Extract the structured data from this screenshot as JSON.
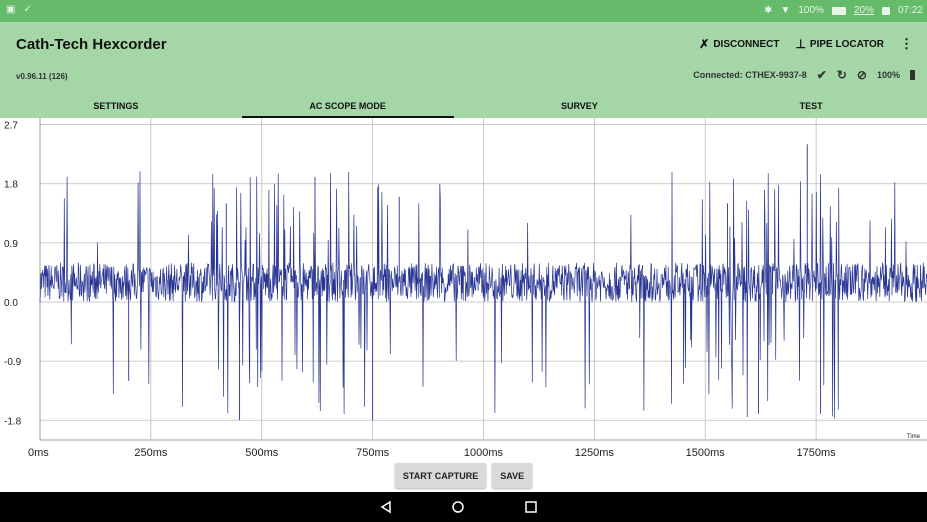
{
  "status_bar": {
    "battery_text": "100%",
    "battery_text2": "20%",
    "time": "07:22"
  },
  "app": {
    "title": "Cath-Tech Hexcorder",
    "version": "v0.96.11 (126)",
    "actions": {
      "disconnect": "DISCONNECT",
      "pipe_locator": "PIPE LOCATOR"
    },
    "connection": {
      "text": "Connected: CTHEX-9937-8",
      "battery": "100%"
    },
    "tabs": [
      {
        "label": "SETTINGS"
      },
      {
        "label": "AC SCOPE MODE"
      },
      {
        "label": "SURVEY"
      },
      {
        "label": "TEST"
      }
    ],
    "active_tab": 1
  },
  "chart_data": {
    "type": "line",
    "xlabel": "Time",
    "ylabel": "",
    "xlim": [
      0,
      2000
    ],
    "ylim": [
      -2.1,
      2.8
    ],
    "y_ticks": [
      "2.7",
      "1.8",
      "0.9",
      "0.0",
      "-0.9",
      "-1.8"
    ],
    "x_ticks": [
      "0ms",
      "250ms",
      "500ms",
      "750ms",
      "1000ms",
      "1250ms",
      "1500ms",
      "1750ms"
    ],
    "grid": true,
    "series": [
      {
        "color": "#283593",
        "baseline_range": [
          0.0,
          0.6
        ],
        "note_values": [
          {
            "x": 200,
            "y": -1.2
          },
          {
            "x": 420,
            "y": 1.5
          },
          {
            "x": 450,
            "y": -1.8
          },
          {
            "x": 620,
            "y": 1.9
          },
          {
            "x": 750,
            "y": -1.8
          },
          {
            "x": 810,
            "y": 1.6
          },
          {
            "x": 1550,
            "y": 1.5
          },
          {
            "x": 1620,
            "y": -1.7
          },
          {
            "x": 1730,
            "y": 2.4
          },
          {
            "x": 1760,
            "y": -1.7
          }
        ]
      }
    ]
  },
  "controls": {
    "start_capture": "START CAPTURE",
    "save": "SAVE"
  }
}
